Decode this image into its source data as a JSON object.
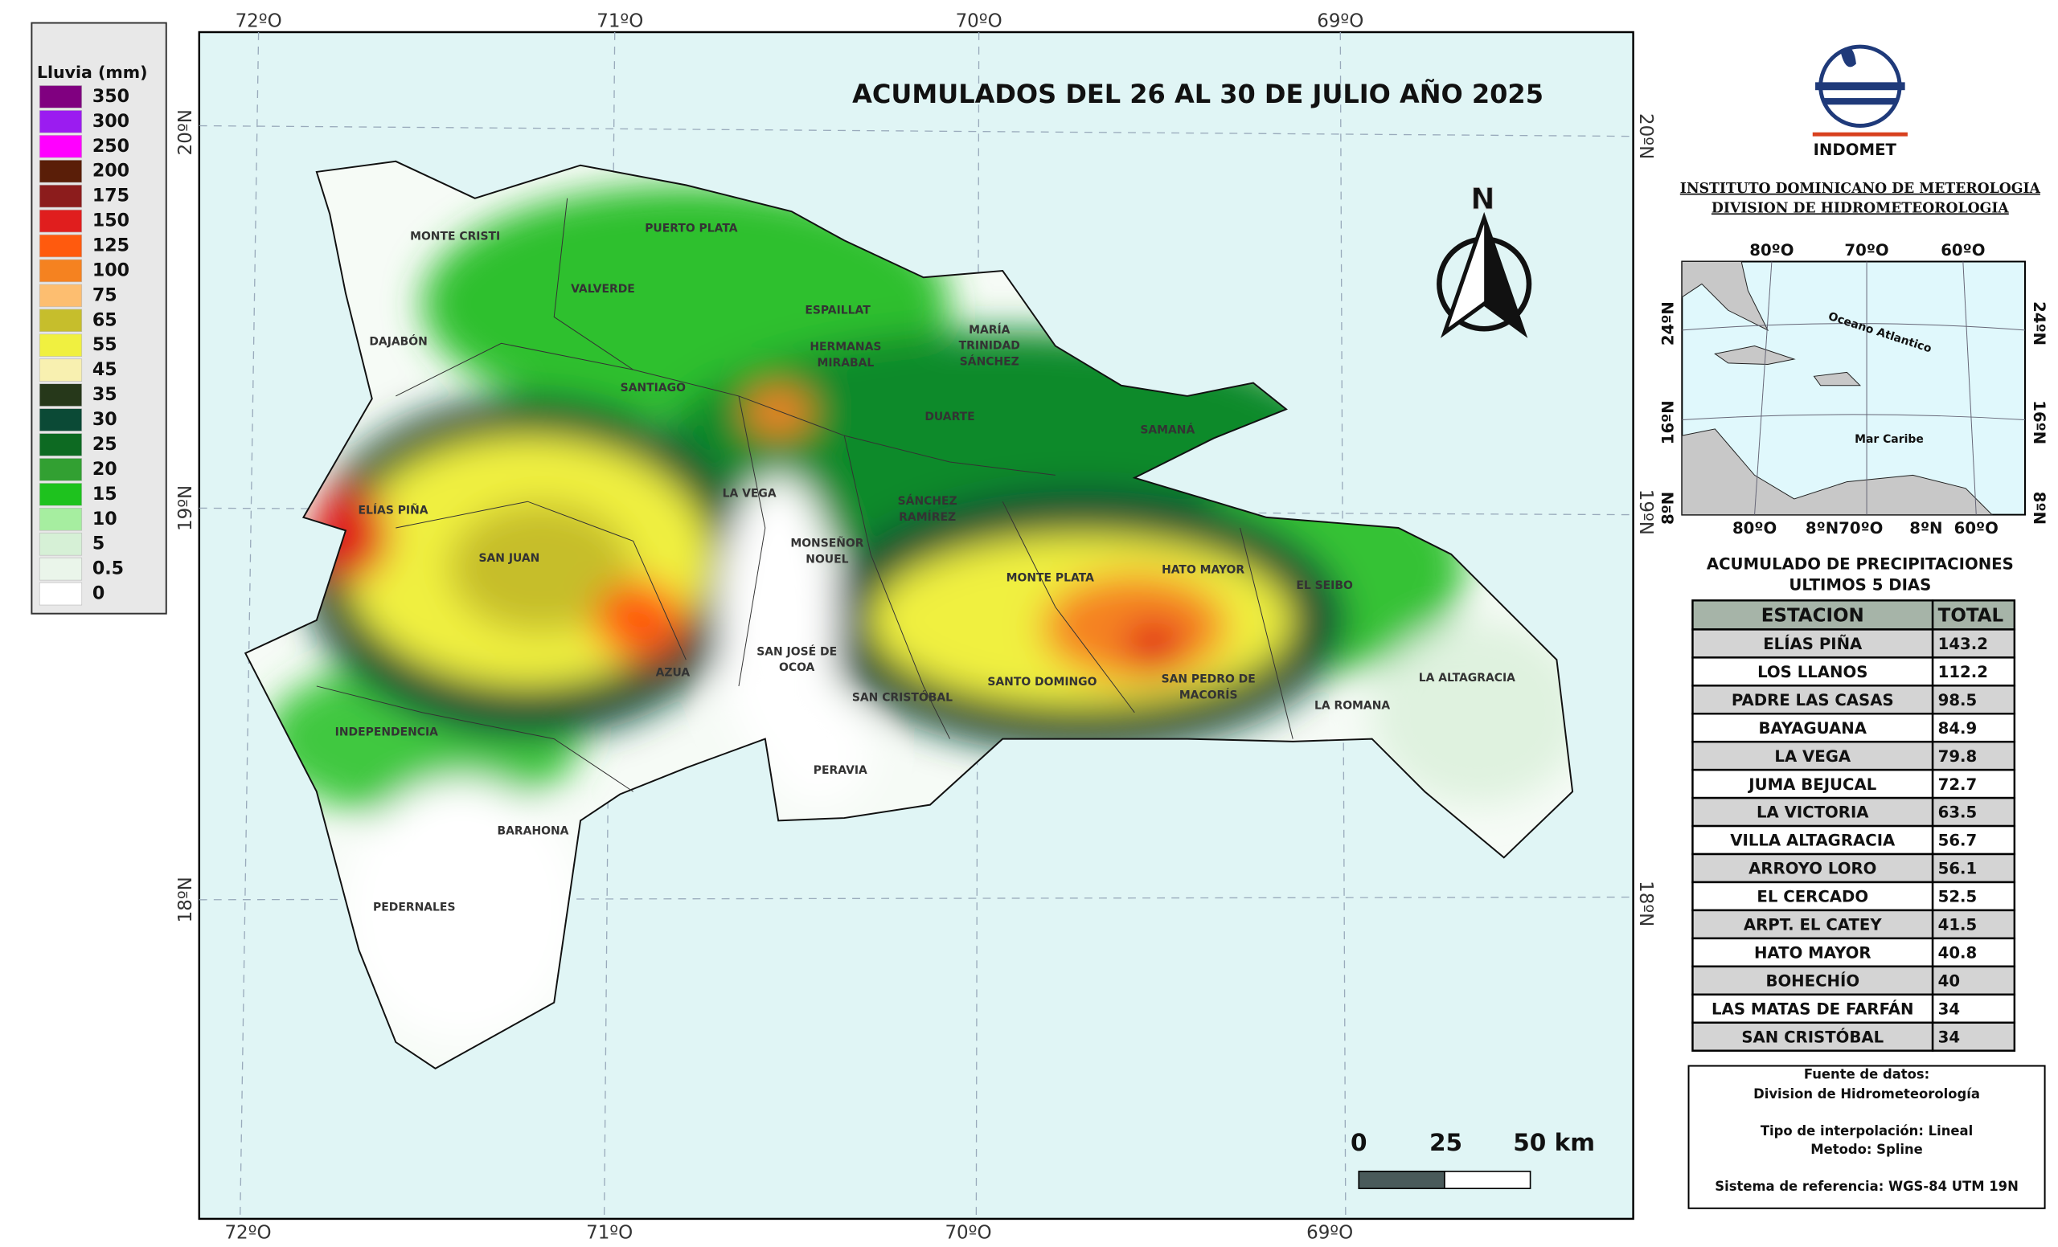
{
  "legend": {
    "title": "Lluvia (mm)",
    "items": [
      {
        "label": "350",
        "color": "#800080"
      },
      {
        "label": "300",
        "color": "#9b1cf0"
      },
      {
        "label": "250",
        "color": "#ff00ff"
      },
      {
        "label": "200",
        "color": "#5a1e08"
      },
      {
        "label": "175",
        "color": "#8c1c1c"
      },
      {
        "label": "150",
        "color": "#e01e1e"
      },
      {
        "label": "125",
        "color": "#ff5a0e"
      },
      {
        "label": "100",
        "color": "#f58220"
      },
      {
        "label": "75",
        "color": "#fdbe70"
      },
      {
        "label": "65",
        "color": "#c6be2c"
      },
      {
        "label": "55",
        "color": "#f0f040"
      },
      {
        "label": "45",
        "color": "#f8f0b0"
      },
      {
        "label": "35",
        "color": "#26381a"
      },
      {
        "label": "30",
        "color": "#0b4a36"
      },
      {
        "label": "25",
        "color": "#0d6a22"
      },
      {
        "label": "20",
        "color": "#32a032"
      },
      {
        "label": "15",
        "color": "#1ec21e"
      },
      {
        "label": "10",
        "color": "#a6eea0"
      },
      {
        "label": "5",
        "color": "#d6f0d6"
      },
      {
        "label": "0.5",
        "color": "#eaf5ea"
      },
      {
        "label": "0",
        "color": "#ffffff"
      }
    ]
  },
  "map": {
    "title": "ACUMULADOS DEL 26 AL 30 DE JULIO AÑO 2025",
    "north": "N",
    "lon_labels": [
      "72ºO",
      "71ºO",
      "70ºO",
      "69ºO"
    ],
    "lat_labels": [
      "20ºN",
      "19ºN",
      "18ºN"
    ],
    "places": [
      {
        "lines": [
          "MONTE CRISTI"
        ]
      },
      {
        "lines": [
          "PUERTO PLATA"
        ]
      },
      {
        "lines": [
          "VALVERDE"
        ]
      },
      {
        "lines": [
          "ESPAILLAT"
        ]
      },
      {
        "lines": [
          "MARÍA",
          "TRINIDAD",
          "SÁNCHEZ"
        ]
      },
      {
        "lines": [
          "DAJABÓN"
        ]
      },
      {
        "lines": [
          "HERMANAS",
          "MIRABAL"
        ]
      },
      {
        "lines": [
          "SANTIAGO"
        ]
      },
      {
        "lines": [
          "DUARTE"
        ]
      },
      {
        "lines": [
          "SAMANÁ"
        ]
      },
      {
        "lines": [
          "LA VEGA"
        ]
      },
      {
        "lines": [
          "SÁNCHEZ",
          "RAMÍREZ"
        ]
      },
      {
        "lines": [
          "ELÍAS PIÑA"
        ]
      },
      {
        "lines": [
          "MONSEÑOR",
          "NOUEL"
        ]
      },
      {
        "lines": [
          "SAN JUAN"
        ]
      },
      {
        "lines": [
          "MONTE PLATA"
        ]
      },
      {
        "lines": [
          "HATO MAYOR"
        ]
      },
      {
        "lines": [
          "EL SEIBO"
        ]
      },
      {
        "lines": [
          "SAN JOSÉ DE",
          "OCOA"
        ]
      },
      {
        "lines": [
          "AZUA"
        ]
      },
      {
        "lines": [
          "SAN CRISTÓBAL"
        ]
      },
      {
        "lines": [
          "SANTO DOMINGO"
        ]
      },
      {
        "lines": [
          "SAN PEDRO DE",
          "MACORÍS"
        ]
      },
      {
        "lines": [
          "LA ROMANA"
        ]
      },
      {
        "lines": [
          "LA ALTAGRACIA"
        ]
      },
      {
        "lines": [
          "INDEPENDENCIA"
        ]
      },
      {
        "lines": [
          "PERAVIA"
        ]
      },
      {
        "lines": [
          "BARAHONA"
        ]
      },
      {
        "lines": [
          "PEDERNALES"
        ]
      }
    ],
    "scale_labels": [
      "0",
      "25",
      "50 km"
    ]
  },
  "header": {
    "logo": "INDOMET",
    "institute": "INSTITUTO DOMINICANO DE METEROLOGIA",
    "division": "DIVISION DE HIDROMETEOROLOGIA"
  },
  "inset": {
    "top_labels": [
      "80ºO",
      "70ºO",
      "60ºO"
    ],
    "bottom_labels": [
      "80ºO",
      "8ºN70ºO",
      "8ºN",
      "60ºO"
    ],
    "left_labels": [
      "24ºN",
      "16ºN",
      "8ºN"
    ],
    "right_labels": [
      "24ºN",
      "16ºN",
      "8ºN"
    ],
    "ocean": "Oceano Atlantico",
    "sea": "Mar Caribe"
  },
  "table": {
    "title": "ACUMULADO DE PRECIPITACIONES",
    "subtitle": "ULTIMOS 5 DIAS",
    "columns": [
      "ESTACION",
      "TOTAL"
    ],
    "rows": [
      [
        "ELÍAS PIÑA",
        "143.2"
      ],
      [
        "LOS LLANOS",
        "112.2"
      ],
      [
        "PADRE LAS CASAS",
        "98.5"
      ],
      [
        "BAYAGUANA",
        "84.9"
      ],
      [
        "LA VEGA",
        "79.8"
      ],
      [
        "JUMA BEJUCAL",
        "72.7"
      ],
      [
        "LA VICTORIA",
        "63.5"
      ],
      [
        "VILLA ALTAGRACIA",
        "56.7"
      ],
      [
        "ARROYO LORO",
        "56.1"
      ],
      [
        "EL CERCADO",
        "52.5"
      ],
      [
        "ARPT. EL CATEY",
        "41.5"
      ],
      [
        "HATO MAYOR",
        "40.8"
      ],
      [
        "BOHECHÍO",
        "40"
      ],
      [
        "LAS MATAS DE FARFÁN",
        "34"
      ],
      [
        "SAN CRISTÓBAL",
        "34"
      ]
    ]
  },
  "notes": [
    "Fuente de datos:",
    "Division de Hidrometeorología",
    "Tipo de interpolación: Lineal",
    "Metodo: Spline",
    "Sistema de referencia: WGS-84 UTM 19N"
  ]
}
